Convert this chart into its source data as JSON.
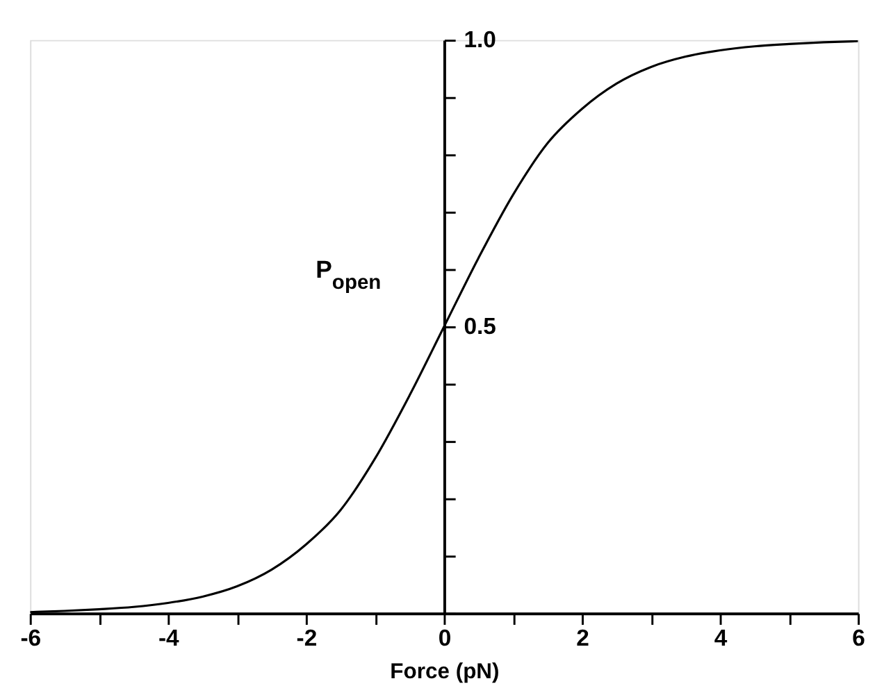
{
  "chart_data": {
    "type": "line",
    "xlabel": "Force (pN)",
    "ylabel": "P$_{open}$",
    "x": [
      -6,
      -5.5,
      -5,
      -4.5,
      -4,
      -3.5,
      -3,
      -2.5,
      -2,
      -1.5,
      -1,
      -0.5,
      0,
      0.5,
      1,
      1.5,
      2,
      2.5,
      3,
      3.5,
      4,
      4.5,
      5,
      5.5,
      6
    ],
    "series": [
      {
        "color": "#000000",
        "line_style": "solid",
        "values": [
          0.002,
          0.004,
          0.007,
          0.011,
          0.018,
          0.029,
          0.047,
          0.076,
          0.12,
          0.18,
          0.27,
          0.38,
          0.5,
          0.62,
          0.73,
          0.82,
          0.88,
          0.924,
          0.953,
          0.971,
          0.982,
          0.989,
          0.993,
          0.996,
          0.998
        ]
      }
    ],
    "xlim": [
      -6,
      6
    ],
    "xticks": [
      -6,
      {
        "value": -5,
        "label": null
      },
      -4,
      {
        "value": -3,
        "label": null
      },
      -2,
      {
        "value": -1,
        "label": null
      },
      0,
      {
        "value": 1,
        "label": null
      },
      2,
      {
        "value": 3,
        "label": null
      },
      4,
      {
        "value": 5,
        "label": null
      },
      6
    ],
    "ylim": [
      0,
      1
    ],
    "yticks": [
      {
        "value": 0,
        "label": null
      },
      {
        "value": 0.1,
        "label": null
      },
      {
        "value": 0.2,
        "label": null
      },
      {
        "value": 0.3,
        "label": null
      },
      {
        "value": 0.4,
        "label": null
      },
      0.5,
      {
        "value": 0.6,
        "label": null
      },
      {
        "value": 0.7,
        "label": null
      },
      {
        "value": 0.8,
        "label": null
      },
      {
        "value": 0.9,
        "label": null
      },
      {
        "value": 1,
        "label": "1.0"
      }
    ],
    "grid": false
  }
}
